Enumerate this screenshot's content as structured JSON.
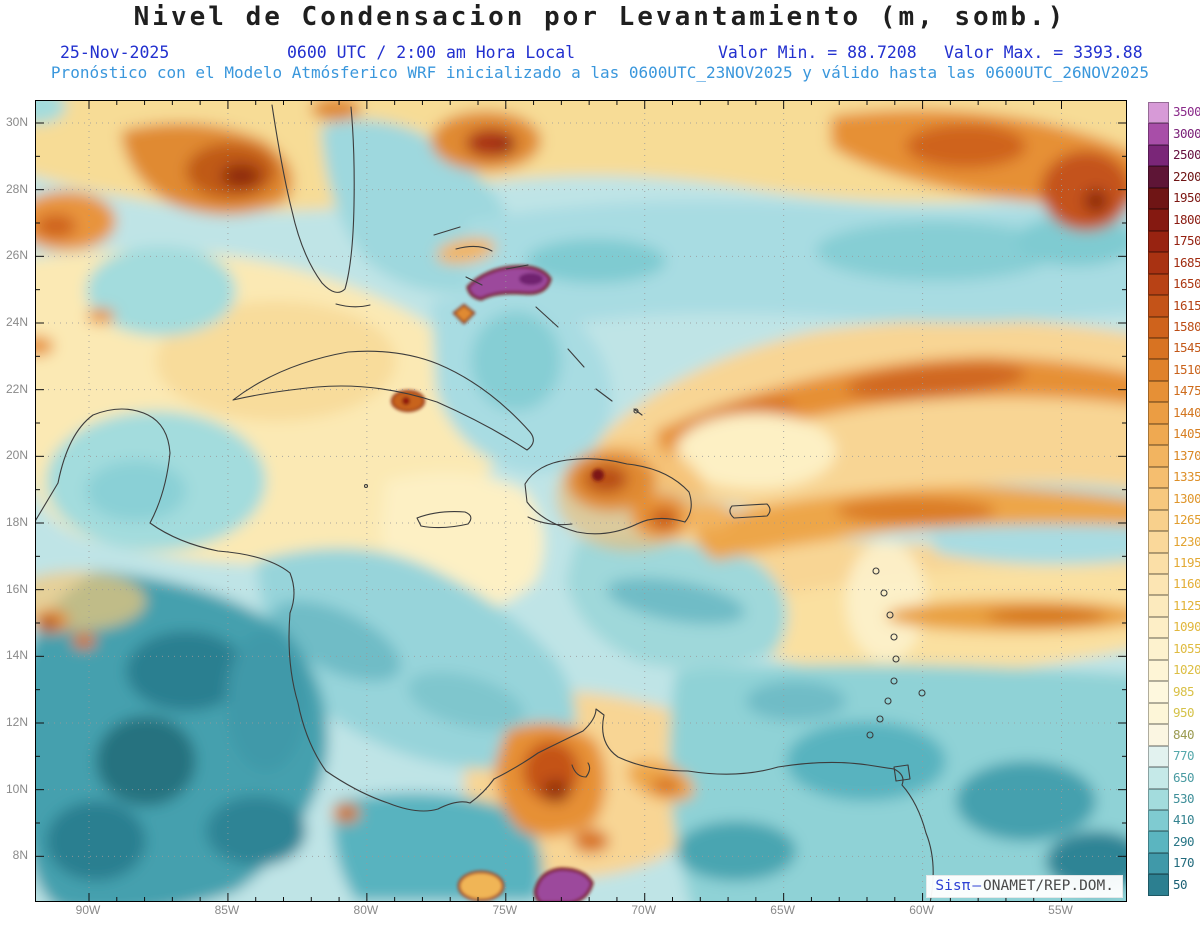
{
  "title": "Nivel de Condensacion por Levantamiento (m, somb.)",
  "header": {
    "date": "25-Nov-2025",
    "time": "0600 UTC / 2:00 am Hora Local",
    "min_label": "Valor Min. = 88.7208",
    "max_label": "Valor Max. = 3393.88",
    "forecast_line": "Pronóstico con el Modelo Atmósferico WRF inicializado a las 0600UTC_23NOV2025 y válido hasta las  0600UTC_26NOV2025"
  },
  "watermark": {
    "brand": "Sisπ",
    "separator": "—",
    "org": "ONAMET/REP.DOM."
  },
  "axes": {
    "lat_labels": [
      "30N",
      "28N",
      "26N",
      "24N",
      "22N",
      "20N",
      "18N",
      "16N",
      "14N",
      "12N",
      "10N",
      "8N"
    ],
    "lon_labels": [
      "90W",
      "85W",
      "80W",
      "75W",
      "70W",
      "65W",
      "60W",
      "55W"
    ]
  },
  "chart_data": {
    "type": "heatmap",
    "title": "Nivel de Condensacion por Levantamiento (m, somb.)",
    "units": "m",
    "value_min": 88.7208,
    "value_max": 3393.88,
    "valid_date": "25-Nov-2025",
    "valid_time": "0600 UTC / 2:00 am Hora Local",
    "model": "WRF",
    "init_time": "0600UTC_23NOV2025",
    "valid_until": "0600UTC_26NOV2025",
    "lat_range": [
      "8N",
      "30N"
    ],
    "lon_range": [
      "90W",
      "55W"
    ],
    "legend_position": "right"
  },
  "colorbar": {
    "levels": [
      3500,
      3000,
      2500,
      2200,
      1950,
      1800,
      1750,
      1685,
      1650,
      1615,
      1580,
      1545,
      1510,
      1475,
      1440,
      1405,
      1370,
      1335,
      1300,
      1265,
      1230,
      1195,
      1160,
      1125,
      1090,
      1055,
      1020,
      985,
      950,
      840,
      770,
      650,
      530,
      410,
      290,
      170,
      50
    ],
    "colors": [
      "#d79ad7",
      "#a84ea8",
      "#7a2678",
      "#5e1536",
      "#6f1515",
      "#851911",
      "#982311",
      "#a93212",
      "#b84215",
      "#c45318",
      "#cf631c",
      "#d87322",
      "#e0822b",
      "#e69036",
      "#eb9d43",
      "#efa951",
      "#f2b460",
      "#f5be6f",
      "#f7c87e",
      "#f8d08c",
      "#fad89a",
      "#fbdfa7",
      "#fce5b3",
      "#fceabd",
      "#fdeec6",
      "#fdf2ce",
      "#fef5d6",
      "#fef8de",
      "#fdf6d8",
      "#fbf6e2",
      "#e2f2ef",
      "#c5e9e8",
      "#a3dcdd",
      "#7fcbd1",
      "#5bb5c0",
      "#4099a9",
      "#2c7f90"
    ],
    "label_colors": [
      "#8a2a8a",
      "#7a2078",
      "#661040",
      "#6f1515",
      "#7d1712",
      "#8a1a10",
      "#952110",
      "#a12c10",
      "#ab3712",
      "#b44214",
      "#bc4d16",
      "#c35818",
      "#c9621a",
      "#ce6c1c",
      "#d3761f",
      "#d77f22",
      "#da8725",
      "#dd8f28",
      "#df962b",
      "#e19d2e",
      "#e2a331",
      "#e3a934",
      "#e3ae37",
      "#e2b33a",
      "#e1b73d",
      "#dfbb40",
      "#dcbe43",
      "#d9c046",
      "#d5c249",
      "#9a9a50",
      "#55a8ab",
      "#4a9ba2",
      "#3f8f99",
      "#348390",
      "#2a7787",
      "#226b7d",
      "#1a5f73"
    ]
  }
}
